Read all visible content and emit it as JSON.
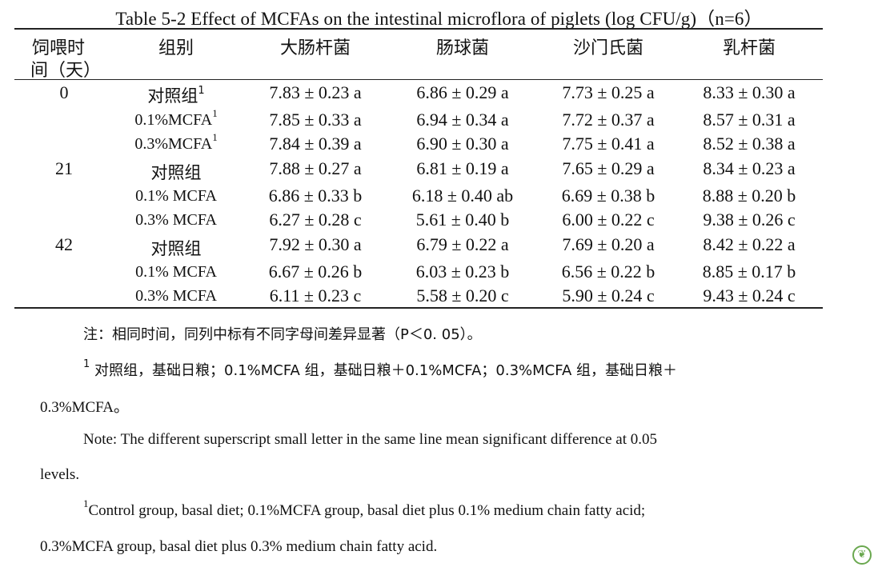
{
  "title": "Table 5-2 Effect of MCFAs on the intestinal microflora of piglets (log CFU/g)（n=6）",
  "headers": {
    "time_line1": "饲喂时",
    "time_line2": "间（天）",
    "group": "组别",
    "col1": "大肠杆菌",
    "col2": "肠球菌",
    "col3": "沙门氏菌",
    "col4": "乳杆菌"
  },
  "rows": [
    {
      "day": "0",
      "group": "对照组",
      "sup": "1",
      "v": [
        "7.83 ± 0.23 a",
        "6.86 ± 0.29 a",
        "7.73 ± 0.25 a",
        "8.33 ± 0.30 a"
      ]
    },
    {
      "day": "",
      "group": "0.1%MCFA",
      "sup": "1",
      "v": [
        "7.85 ± 0.33 a",
        "6.94 ± 0.34 a",
        "7.72 ± 0.37 a",
        "8.57 ± 0.31 a"
      ]
    },
    {
      "day": "",
      "group": "0.3%MCFA",
      "sup": "1",
      "v": [
        "7.84 ± 0.39 a",
        "6.90 ± 0.30 a",
        "7.75 ± 0.41 a",
        "8.52 ± 0.38 a"
      ]
    },
    {
      "day": "21",
      "group": "对照组",
      "sup": "",
      "v": [
        "7.88 ± 0.27 a",
        "6.81 ± 0.19 a",
        "7.65 ± 0.29 a",
        "8.34 ± 0.23 a"
      ]
    },
    {
      "day": "",
      "group": "0.1% MCFA",
      "sup": "",
      "v": [
        "6.86 ± 0.33 b",
        "6.18 ± 0.40 ab",
        "6.69 ± 0.38 b",
        "8.88 ± 0.20 b"
      ]
    },
    {
      "day": "",
      "group": "0.3% MCFA",
      "sup": "",
      "v": [
        "6.27 ± 0.28 c",
        "5.61 ± 0.40 b",
        "6.00 ± 0.22 c",
        "9.38 ± 0.26 c"
      ]
    },
    {
      "day": "42",
      "group": "对照组",
      "sup": "",
      "v": [
        "7.92 ± 0.30 a",
        "6.79 ± 0.22 a",
        "7.69 ± 0.20 a",
        "8.42 ± 0.22 a"
      ]
    },
    {
      "day": "",
      "group": "0.1% MCFA",
      "sup": "",
      "v": [
        "6.67 ± 0.26 b",
        "6.03 ± 0.23 b",
        "6.56 ± 0.22 b",
        "8.85 ± 0.17 b"
      ]
    },
    {
      "day": "",
      "group": "0.3% MCFA",
      "sup": "",
      "v": [
        "6.11 ± 0.23 c",
        "5.58 ± 0.20 c",
        "5.90 ± 0.24 c",
        "9.43 ± 0.24 c"
      ]
    }
  ],
  "notes": {
    "cn1": "注：相同时间，同列中标有不同字母间差异显著（P＜0. 05）。",
    "cn2_sup": "1",
    "cn2_line1": "对照组，基础日粮；0.1%MCFA 组，基础日粮＋0.1%MCFA；0.3%MCFA 组，基础日粮＋",
    "cn2_line2": "0.3%MCFA。",
    "en1_line1": "Note: The different superscript small letter in the same line mean significant difference at 0.05",
    "en1_line2": "levels.",
    "en2_sup": "1",
    "en2_line1": "Control group, basal diet; 0.1%MCFA group, basal diet plus 0.1% medium chain fatty acid;",
    "en2_line2": "0.3%MCFA group, basal diet plus 0.3% medium chain fatty acid."
  },
  "badge_icon": "leaf-logo-icon",
  "badge_color": "#6aa84f"
}
